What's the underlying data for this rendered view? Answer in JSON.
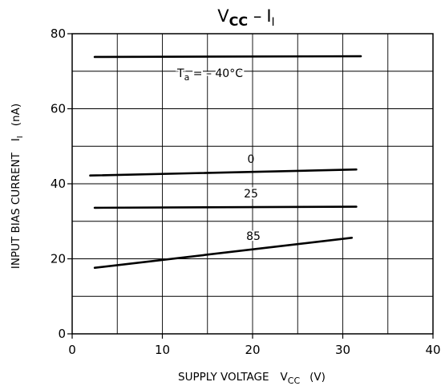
{
  "chart_data": {
    "type": "line",
    "title": {
      "main": "V",
      "main_sub": "CC",
      "sep": "–",
      "right": "I",
      "right_sub": "I"
    },
    "xlabel": {
      "text": "SUPPLY VOLTAGE",
      "sym": "V",
      "sym_sub": "CC",
      "unit": "(V)"
    },
    "ylabel": {
      "text": "INPUT BIAS CURRENT",
      "sym": "I",
      "sym_sub": "I",
      "unit": "(nA)"
    },
    "xlim": [
      0,
      40
    ],
    "ylim": [
      0,
      80
    ],
    "x_ticks": [
      0,
      10,
      20,
      30,
      40
    ],
    "y_ticks": [
      0,
      20,
      40,
      60,
      80
    ],
    "x_grid_step": 5,
    "y_grid_step": 10,
    "grid": true,
    "series": [
      {
        "name": "Ta = –40°C",
        "x": [
          2.5,
          32
        ],
        "values": [
          73.8,
          74.0
        ]
      },
      {
        "name": "0",
        "x": [
          2.0,
          31.5
        ],
        "values": [
          42.2,
          43.8
        ]
      },
      {
        "name": "25",
        "x": [
          2.5,
          31.5
        ],
        "values": [
          33.6,
          33.9
        ]
      },
      {
        "name": "85",
        "x": [
          2.5,
          31.0
        ],
        "values": [
          17.6,
          25.6
        ]
      }
    ],
    "annotations": [
      {
        "series": 0,
        "text": "T",
        "sub": "a",
        "tail": " = – 40°C"
      },
      {
        "series": 1,
        "text": "0"
      },
      {
        "series": 2,
        "text": "25"
      },
      {
        "series": 3,
        "text": "85"
      }
    ]
  }
}
